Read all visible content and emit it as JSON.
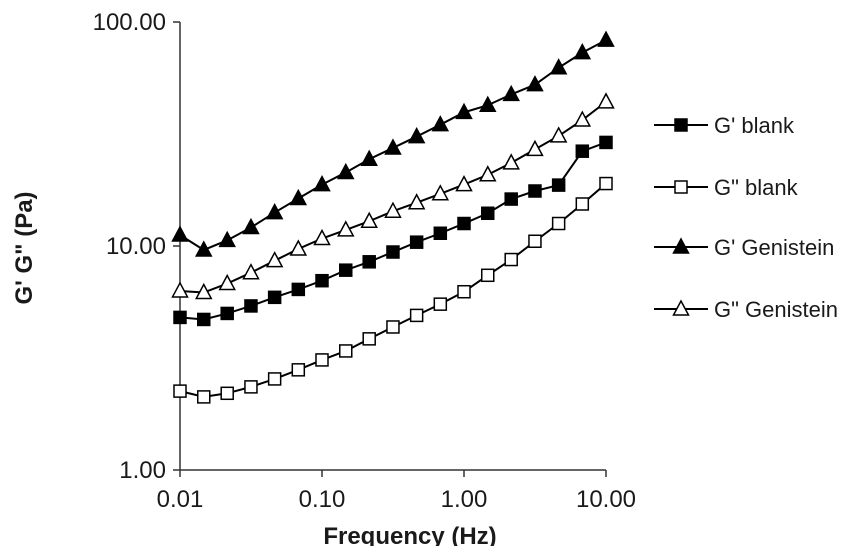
{
  "chart_data": {
    "type": "line",
    "xlabel": "Frequency (Hz)",
    "ylabel": "G' G\" (Pa)",
    "xscale": "log",
    "yscale": "log",
    "xlim": [
      0.01,
      10.0
    ],
    "ylim": [
      1.0,
      100.0
    ],
    "x_ticks": [
      "0.01",
      "0.10",
      "1.00",
      "10.00"
    ],
    "y_ticks": [
      "1.00",
      "10.00",
      "100.00"
    ],
    "grid": false,
    "legend_position": "right",
    "x": [
      0.01,
      0.0147,
      0.0215,
      0.0316,
      0.0464,
      0.0681,
      0.1,
      0.147,
      0.215,
      0.316,
      0.464,
      0.681,
      1.0,
      1.47,
      2.15,
      3.16,
      4.64,
      6.81,
      10.0
    ],
    "series": [
      {
        "name": "G' blank",
        "marker": "square",
        "filled": true,
        "values": [
          4.8,
          4.7,
          5.0,
          5.4,
          5.9,
          6.4,
          7.0,
          7.8,
          8.5,
          9.4,
          10.4,
          11.4,
          12.6,
          14.0,
          16.2,
          17.6,
          18.7,
          26.5,
          29.0
        ]
      },
      {
        "name": "G\" blank",
        "marker": "square",
        "filled": false,
        "values": [
          2.25,
          2.12,
          2.2,
          2.35,
          2.55,
          2.8,
          3.1,
          3.4,
          3.85,
          4.35,
          4.9,
          5.5,
          6.25,
          7.4,
          8.7,
          10.5,
          12.6,
          15.4,
          19.0
        ]
      },
      {
        "name": "G' Genistein",
        "marker": "triangle",
        "filled": true,
        "values": [
          11.2,
          9.6,
          10.6,
          12.1,
          14.1,
          16.3,
          18.8,
          21.3,
          24.4,
          27.4,
          30.8,
          34.8,
          39.5,
          42.5,
          47.5,
          52.5,
          62.5,
          73.0,
          83.0
        ]
      },
      {
        "name": "G\" Genistein",
        "marker": "triangle",
        "filled": false,
        "values": [
          6.3,
          6.2,
          6.8,
          7.6,
          8.6,
          9.7,
          10.8,
          11.8,
          12.9,
          14.3,
          15.6,
          17.1,
          18.8,
          20.8,
          23.5,
          27.0,
          31.0,
          36.5,
          44.0
        ]
      }
    ]
  }
}
